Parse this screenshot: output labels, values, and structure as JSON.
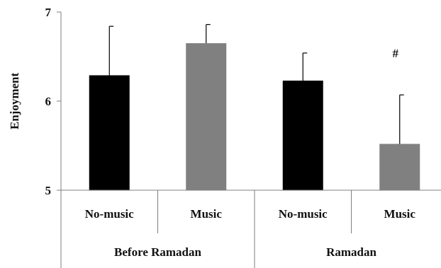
{
  "chart_data": {
    "type": "bar",
    "title": "",
    "xlabel": "",
    "ylabel": "Enjoyment",
    "ylim": [
      5,
      7
    ],
    "yticks": [
      5,
      6,
      7
    ],
    "grid": false,
    "legend": "none",
    "categories": [
      "No-music",
      "Music",
      "No-music",
      "Music"
    ],
    "groups": [
      {
        "label": "Before Ramadan",
        "span": [
          0,
          1
        ]
      },
      {
        "label": "Ramadan",
        "span": [
          2,
          3
        ]
      }
    ],
    "values": [
      6.29,
      6.65,
      6.23,
      5.52
    ],
    "errors_upper": [
      0.55,
      0.21,
      0.31,
      0.55
    ],
    "colors": [
      "#000000",
      "#808080",
      "#000000",
      "#808080"
    ],
    "annotations": [
      {
        "category_index": 3,
        "text": "#"
      }
    ]
  }
}
